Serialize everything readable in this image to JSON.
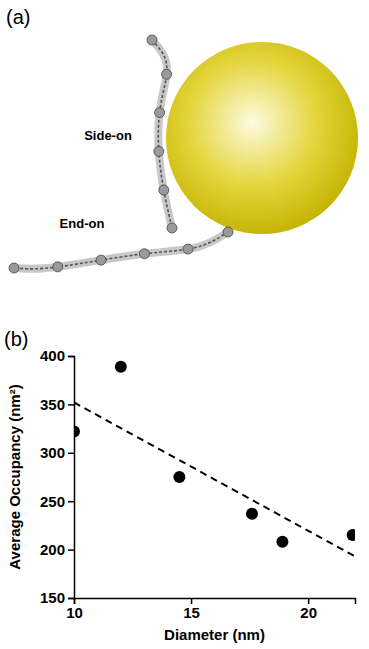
{
  "diagram": {
    "panel": "(a)",
    "labels": [
      "Side-on",
      "End-on"
    ]
  },
  "chart_data": {
    "type": "scatter",
    "panel": "(b)",
    "x_label": "Diameter (nm)",
    "y_label": "Average Occupancy (nm²)",
    "xlim": [
      10,
      22
    ],
    "xticks": [
      10,
      15,
      20
    ],
    "ylim": [
      150,
      400
    ],
    "yticks": [
      150,
      200,
      250,
      300,
      350,
      400
    ],
    "grid": false,
    "series": [
      {
        "type": "scatter",
        "marker": "circle",
        "color": "#000000",
        "x": [
          10,
          12,
          14.5,
          17.6,
          18.9,
          21.9
        ],
        "values": [
          322,
          389,
          275,
          237,
          208,
          215
        ]
      },
      {
        "type": "line",
        "line_style": "dashed",
        "color": "#000000",
        "x": [
          10,
          22
        ],
        "values": [
          352,
          193
        ]
      }
    ]
  }
}
